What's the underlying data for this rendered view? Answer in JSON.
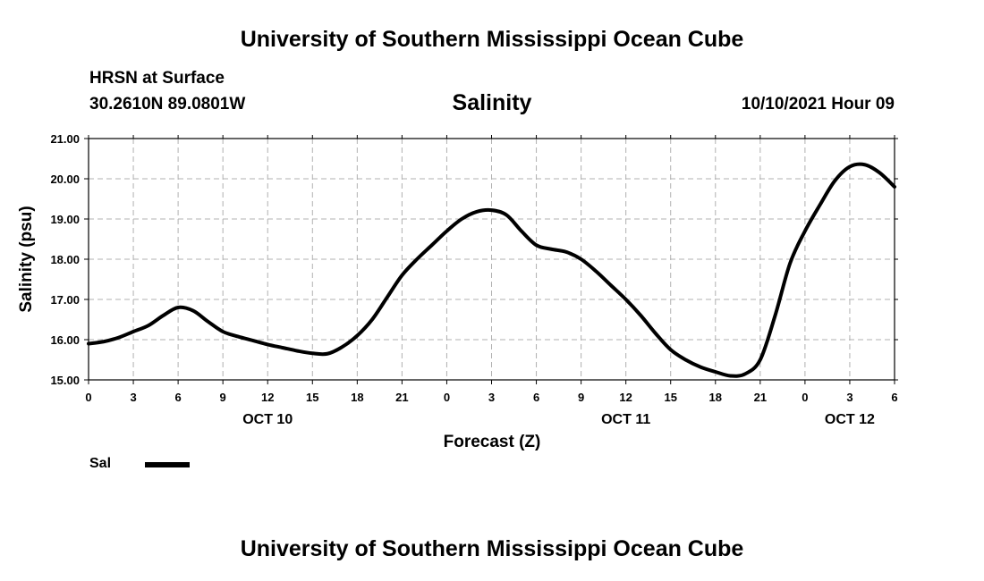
{
  "header": {
    "title_top": "University of Southern Mississippi Ocean Cube",
    "station": "HRSN at Surface",
    "coords": "30.2610N  89.0801W",
    "variable": "Salinity",
    "date": "10/10/2021 Hour 09",
    "title_bottom": "University of Southern Mississippi Ocean Cube"
  },
  "legend": {
    "label": "Sal",
    "color": "#000000"
  },
  "chart_data": {
    "type": "line",
    "title": "Salinity",
    "xlabel": "Forecast (Z)",
    "ylabel": "Salinity (psu)",
    "ylim": [
      15,
      21
    ],
    "xlim": [
      0,
      54
    ],
    "grid": true,
    "x_tick_values": [
      0,
      3,
      6,
      9,
      12,
      15,
      18,
      21,
      24,
      27,
      30,
      33,
      36,
      39,
      42,
      45,
      48,
      51,
      54
    ],
    "x_tick_labels": [
      "0",
      "3",
      "6",
      "9",
      "12",
      "15",
      "18",
      "21",
      "0",
      "3",
      "6",
      "9",
      "12",
      "15",
      "18",
      "21",
      "0",
      "3",
      "6"
    ],
    "y_tick_values": [
      15,
      16,
      17,
      18,
      19,
      20,
      21
    ],
    "y_tick_labels": [
      "15.00",
      "16.00",
      "17.00",
      "18.00",
      "19.00",
      "20.00",
      "21.00"
    ],
    "day_labels": [
      {
        "x": 12,
        "label": "OCT 10"
      },
      {
        "x": 36,
        "label": "OCT 11"
      },
      {
        "x": 51,
        "label": "OCT 12"
      }
    ],
    "series": [
      {
        "name": "Sal",
        "color": "#000000",
        "x": [
          0,
          1,
          2,
          3,
          4,
          5,
          6,
          7,
          8,
          9,
          10,
          11,
          12,
          13,
          14,
          15,
          16,
          17,
          18,
          19,
          20,
          21,
          22,
          23,
          24,
          25,
          26,
          27,
          28,
          29,
          30,
          31,
          32,
          33,
          34,
          35,
          36,
          37,
          38,
          39,
          40,
          41,
          42,
          43,
          44,
          45,
          46,
          47,
          48,
          49,
          50,
          51,
          52,
          53,
          54
        ],
        "values": [
          15.9,
          15.95,
          16.05,
          16.2,
          16.35,
          16.6,
          16.8,
          16.72,
          16.45,
          16.2,
          16.08,
          15.98,
          15.88,
          15.8,
          15.72,
          15.66,
          15.65,
          15.82,
          16.1,
          16.5,
          17.05,
          17.6,
          18.0,
          18.35,
          18.7,
          19.0,
          19.18,
          19.22,
          19.1,
          18.7,
          18.35,
          18.25,
          18.18,
          18.0,
          17.7,
          17.35,
          17.0,
          16.6,
          16.15,
          15.75,
          15.5,
          15.32,
          15.2,
          15.1,
          15.15,
          15.5,
          16.6,
          17.9,
          18.7,
          19.35,
          19.95,
          20.3,
          20.35,
          20.15,
          19.8
        ]
      }
    ]
  }
}
